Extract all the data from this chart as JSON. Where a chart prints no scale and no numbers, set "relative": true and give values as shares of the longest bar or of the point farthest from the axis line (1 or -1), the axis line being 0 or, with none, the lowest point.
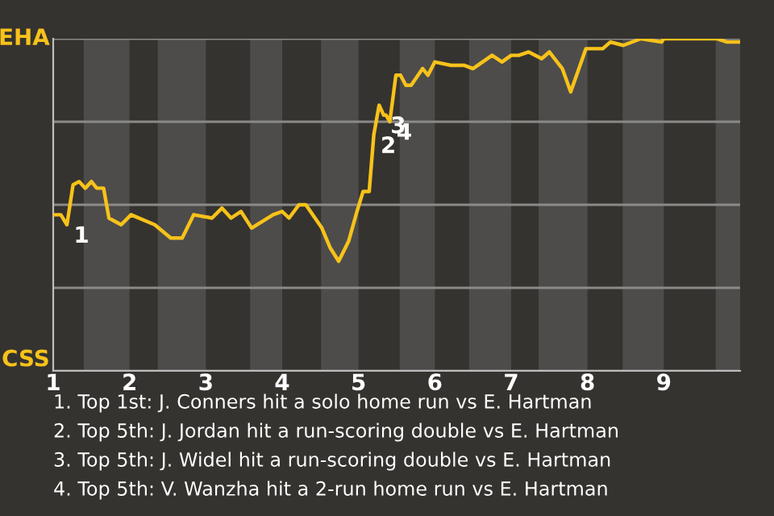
{
  "chart_data": {
    "type": "line",
    "x": [
      1.005,
      1.1,
      1.18,
      1.26,
      1.34,
      1.42,
      1.5,
      1.57,
      1.66,
      1.73,
      1.89,
      2.02,
      2.33,
      2.54,
      2.69,
      2.84,
      3.08,
      3.21,
      3.33,
      3.46,
      3.6,
      3.88,
      4.0,
      4.09,
      4.22,
      4.31,
      4.52,
      4.63,
      4.74,
      4.87,
      4.98,
      5.06,
      5.14,
      5.2,
      5.27,
      5.33,
      5.36,
      5.41,
      5.49,
      5.55,
      5.62,
      5.69,
      5.84,
      5.91,
      6.0,
      6.21,
      6.38,
      6.5,
      6.75,
      6.88,
      7.0,
      7.1,
      7.23,
      7.4,
      7.5,
      7.67,
      7.78,
      7.98,
      8.2,
      8.3,
      8.47,
      8.7,
      8.97,
      9.0,
      9.69,
      9.83,
      10.0
    ],
    "series": [
      {
        "color": "#f7c21a",
        "values": [
          0.47,
          0.47,
          0.44,
          0.56,
          0.57,
          0.55,
          0.57,
          0.55,
          0.55,
          0.46,
          0.44,
          0.47,
          0.44,
          0.4,
          0.4,
          0.47,
          0.46,
          0.49,
          0.46,
          0.48,
          0.43,
          0.47,
          0.48,
          0.46,
          0.5,
          0.5,
          0.43,
          0.37,
          0.33,
          0.39,
          0.48,
          0.54,
          0.54,
          0.71,
          0.8,
          0.77,
          0.77,
          0.75,
          0.89,
          0.89,
          0.86,
          0.86,
          0.91,
          0.89,
          0.93,
          0.92,
          0.92,
          0.91,
          0.95,
          0.93,
          0.95,
          0.95,
          0.96,
          0.94,
          0.96,
          0.91,
          0.84,
          0.97,
          0.97,
          0.99,
          0.98,
          1,
          0.99,
          1,
          1,
          0.99,
          0.99
        ]
      }
    ],
    "relative": true,
    "xlim": [
      1,
      10
    ],
    "xticks": [
      1,
      2,
      3,
      4,
      5,
      6,
      7,
      8,
      9
    ],
    "tick_labels": "x",
    "grid": "y",
    "bands": [
      {
        "axis": "x",
        "from": 1.4,
        "to": 2,
        "color": "#4d4c4a"
      },
      {
        "axis": "x",
        "from": 2.37,
        "to": 3,
        "color": "#4d4c4a"
      },
      {
        "axis": "x",
        "from": 3.58,
        "to": 4,
        "color": "#4d4c4a"
      },
      {
        "axis": "x",
        "from": 4.51,
        "to": 5,
        "color": "#4d4c4a"
      },
      {
        "axis": "x",
        "from": 5.54,
        "to": 6,
        "color": "#4d4c4a"
      },
      {
        "axis": "x",
        "from": 6.45,
        "to": 7,
        "color": "#4d4c4a"
      },
      {
        "axis": "x",
        "from": 7.36,
        "to": 8,
        "color": "#4d4c4a"
      },
      {
        "axis": "x",
        "from": 8.46,
        "to": 9,
        "color": "#4d4c4a"
      },
      {
        "axis": "x",
        "from": 9.68,
        "to": 10,
        "color": "#4d4c4a"
      }
    ],
    "annotations": [
      "EHA",
      "CSS",
      {
        "text": "1",
        "x": 1.18,
        "y": 0.44
      },
      {
        "text": "2",
        "x": 5.2,
        "y": 0.71
      },
      {
        "text": "3",
        "x": 5.33,
        "y": 0.77
      },
      {
        "text": "4",
        "x": 5.41,
        "y": 0.75
      },
      "1. Top 1st: J. Conners hit a solo home run vs E. Hartman",
      "2. Top 5th: J. Jordan hit a run-scoring double vs E. Hartman",
      "3. Top 5th: J. Widel hit a run-scoring double vs E. Hartman",
      "4. Top 5th: V. Wanzha hit a 2-run home run vs E. Hartman"
    ],
    "line_style": "solid",
    "marker": "none",
    "legend": false
  }
}
